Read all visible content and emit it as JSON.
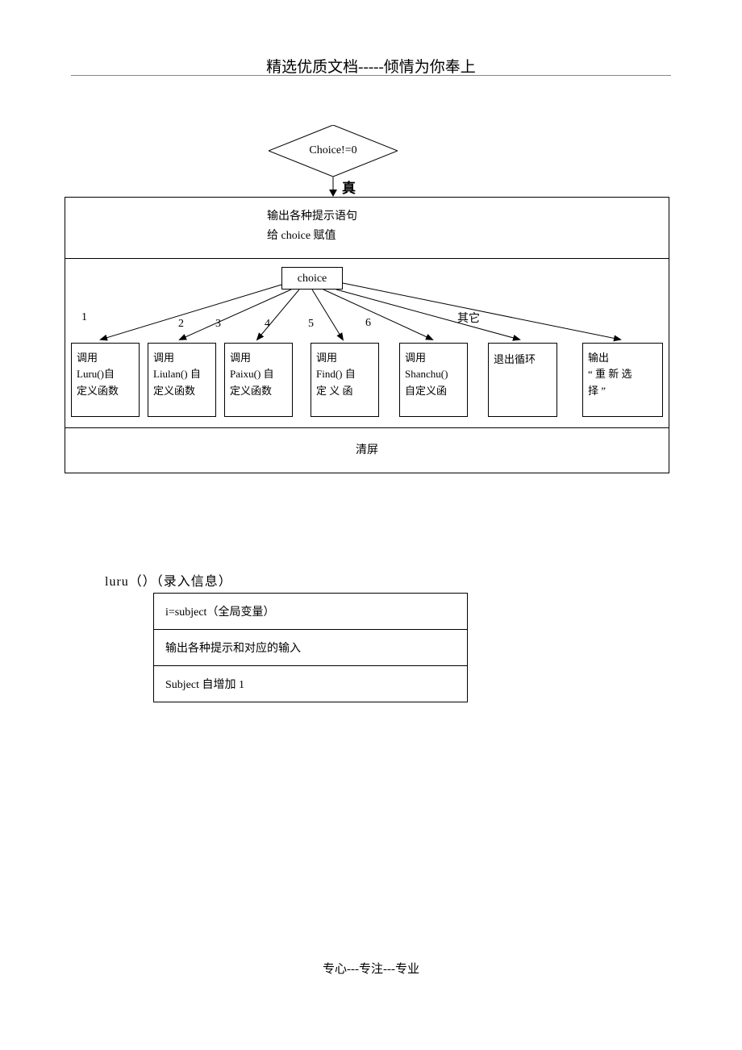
{
  "header": "精选优质文档-----倾情为你奉上",
  "footer": "专心---专注---专业",
  "diamond_label": "Choice!=0",
  "true_label": "真",
  "prompt_line1": "输出各种提示语句",
  "prompt_line2": "给 choice 赋值",
  "choice_label": "choice",
  "branches": {
    "b1": "1",
    "b2": "2",
    "b3": "3",
    "b4": "4",
    "b5": "5",
    "b6": "6",
    "bx": "其它"
  },
  "cases": {
    "c1": "调用\nLuru()自\n定义函数",
    "c2": "调用\nLiulan() 自\n定义函数",
    "c3": "调用\nPaixu()  自\n定义函数",
    "c4": "调用\nFind() 自\n定 义 函",
    "c5": "调用\nShanchu()\n自定义函",
    "c6": "退出循环",
    "c7": "输出\n“ 重 新 选\n择 ”"
  },
  "clear_label": "清屏",
  "luru_title": "luru（）（录入信息）",
  "luru_rows": {
    "r1": "i=subject（全局变量）",
    "r2": "输出各种提示和对应的输入",
    "r3": "Subject 自增加 1"
  },
  "colors": {
    "line": "#000000",
    "bg": "#ffffff"
  }
}
